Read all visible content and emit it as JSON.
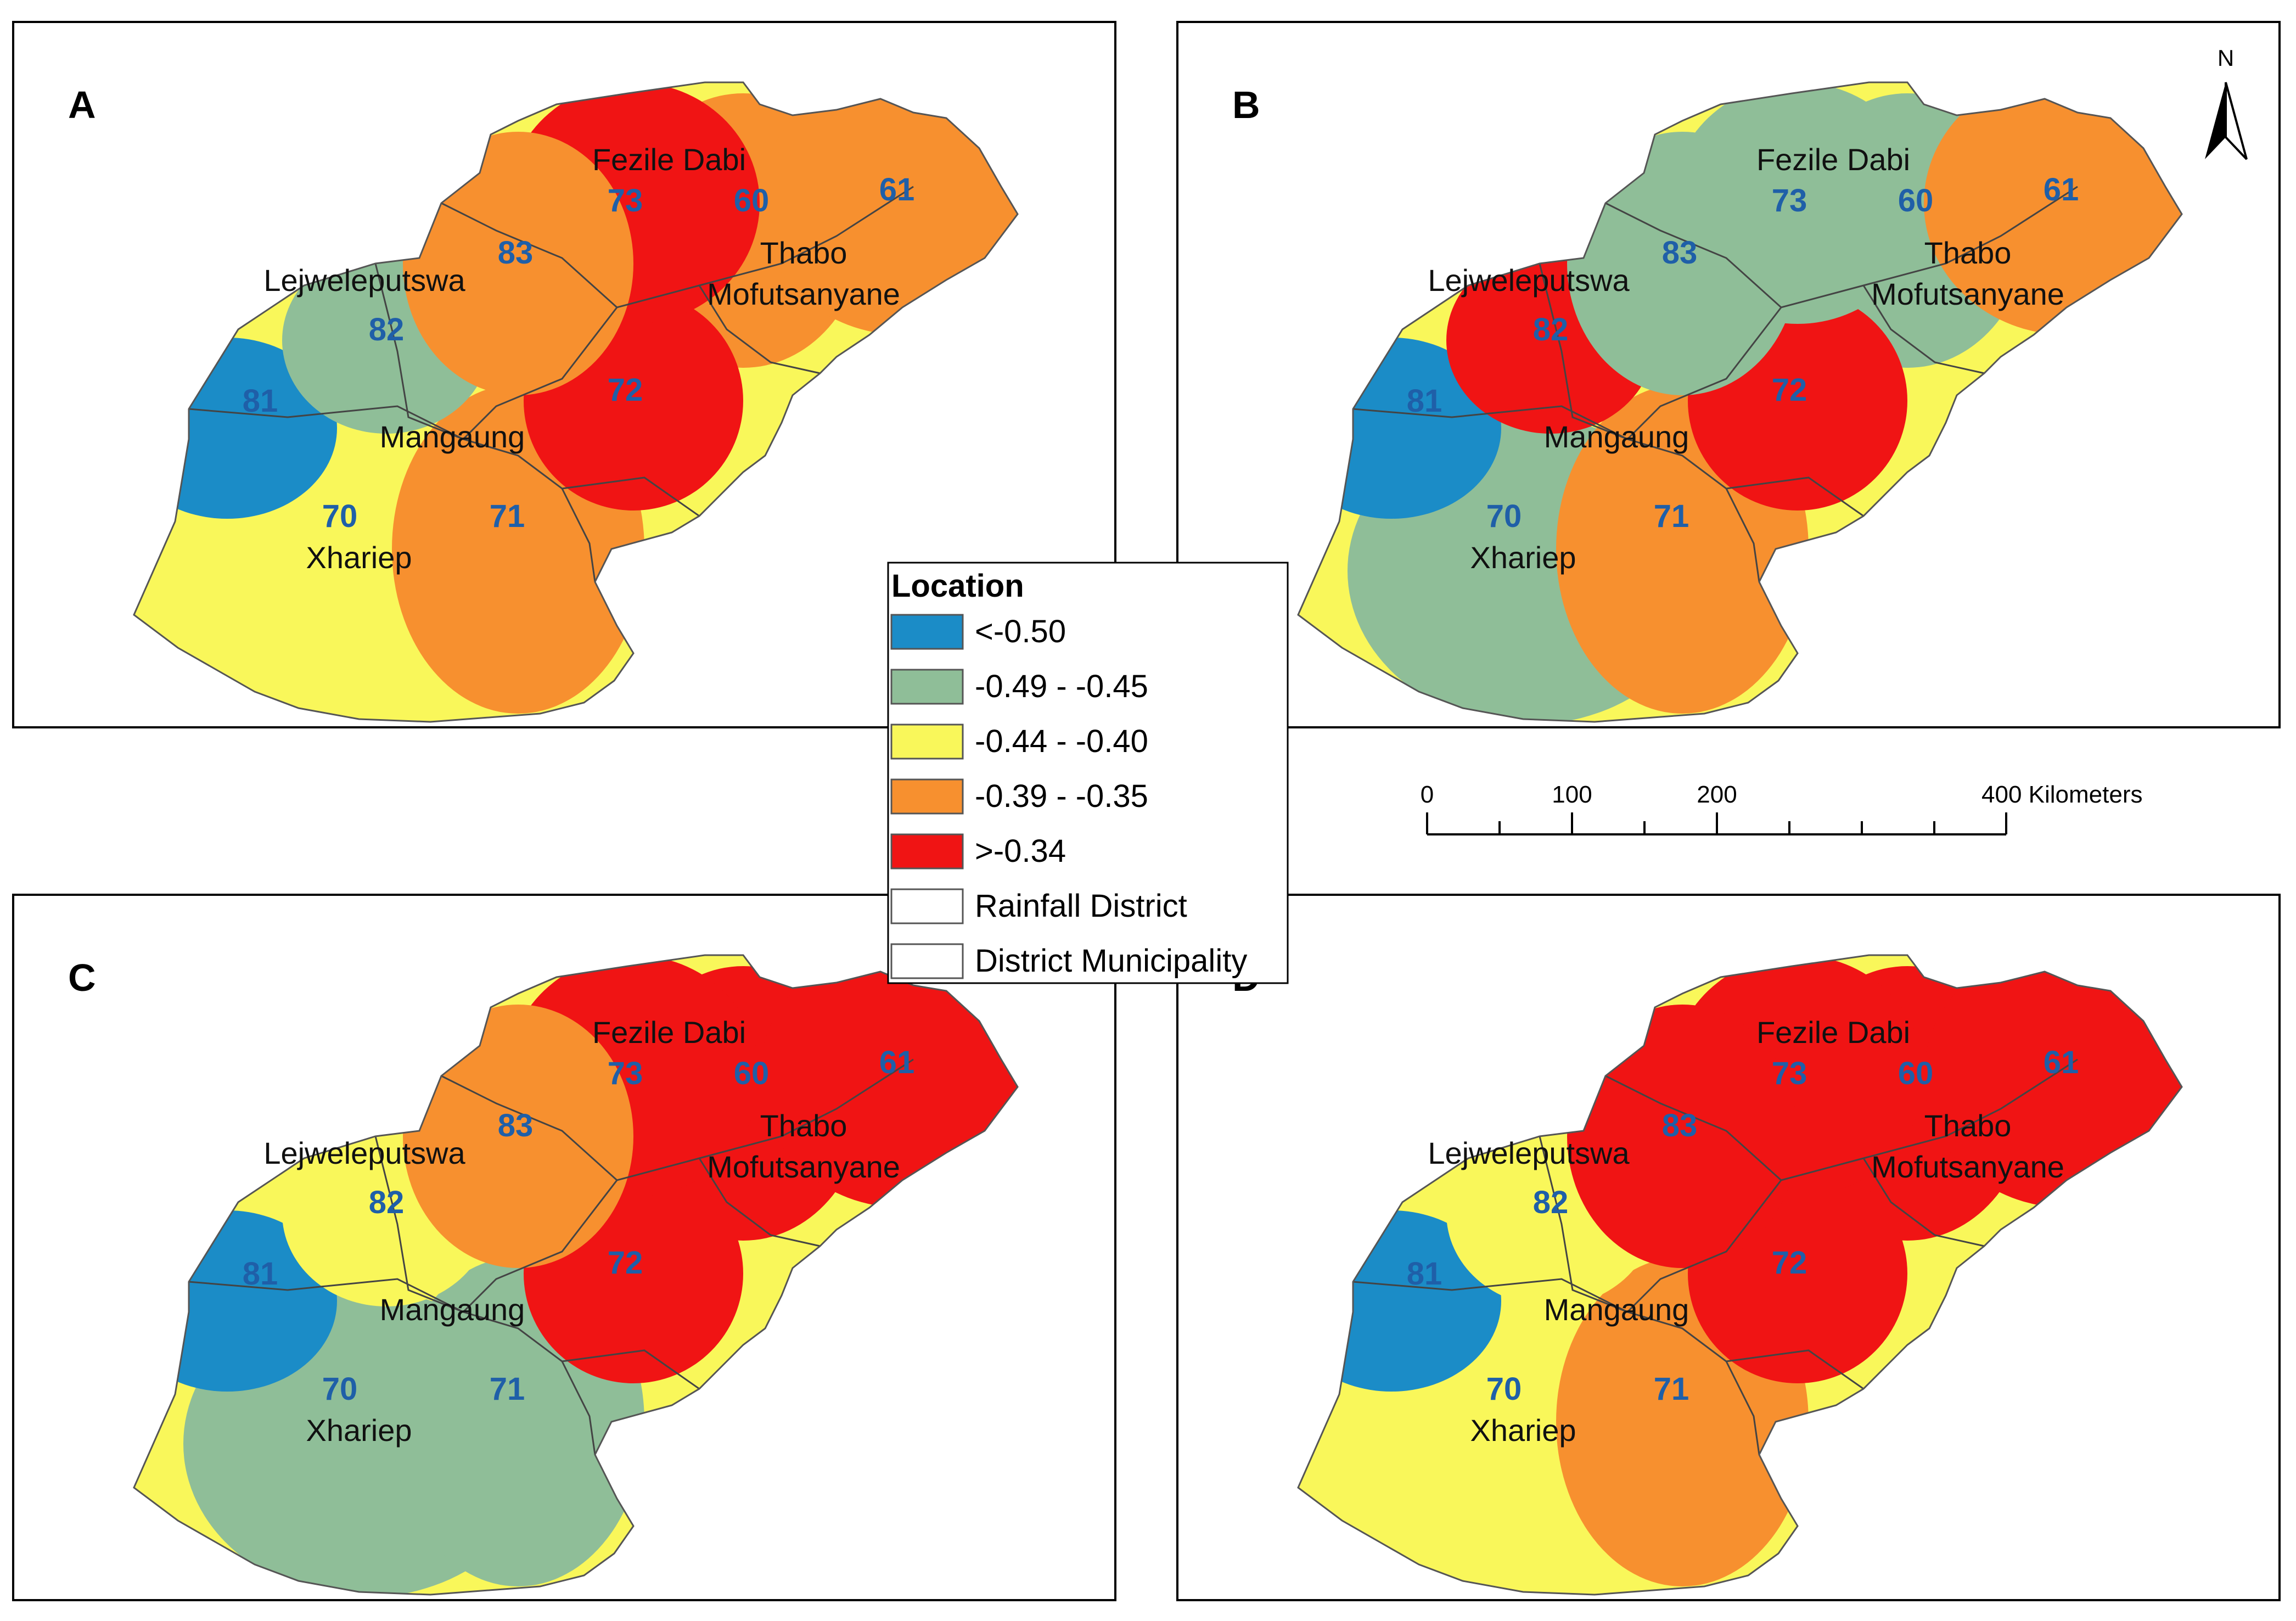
{
  "colors": {
    "class1": "#1b8cc7",
    "class2": "#8fbe98",
    "class3": "#f9f75a",
    "class4": "#f7902f",
    "class5": "#f01414"
  },
  "panels": [
    {
      "letter": "A",
      "classes": {
        "81": "class1",
        "82": "class2",
        "70": "class3",
        "83": "class4",
        "71": "class4",
        "73": "class5",
        "72": "class5",
        "60": "class4",
        "61": "class4"
      }
    },
    {
      "letter": "B",
      "classes": {
        "81": "class1",
        "70": "class2",
        "73": "class2",
        "83": "class2",
        "60": "class2",
        "82": "class5",
        "72": "class5",
        "71": "class4",
        "61": "class4"
      }
    },
    {
      "letter": "C",
      "classes": {
        "81": "class1",
        "70": "class2",
        "71": "class2",
        "82": "class3",
        "83": "class4",
        "73": "class5",
        "60": "class5",
        "61": "class5",
        "72": "class5"
      }
    },
    {
      "letter": "D",
      "classes": {
        "81": "class1",
        "82": "class3",
        "70": "class3",
        "71": "class4",
        "83": "class5",
        "73": "class5",
        "60": "class5",
        "61": "class5",
        "72": "class5"
      }
    }
  ],
  "districts": {
    "fezile": "Fezile Dabi",
    "lejwe": "Lejweleputswa",
    "thabo1": "Thabo",
    "thabo2": "Mofutsanyane",
    "mangaung": "Mangaung",
    "xhariep": "Xhariep"
  },
  "station_ids": [
    "73",
    "60",
    "61",
    "83",
    "82",
    "81",
    "72",
    "70",
    "71"
  ],
  "legend": {
    "title": "Location",
    "items": [
      {
        "label": "<-0.50",
        "color_key": "class1"
      },
      {
        "label": "-0.49 - -0.45",
        "color_key": "class2"
      },
      {
        "label": "-0.44 - -0.40",
        "color_key": "class3"
      },
      {
        "label": "-0.39 - -0.35",
        "color_key": "class4"
      },
      {
        "label": ">-0.34",
        "color_key": "class5"
      },
      {
        "label": "Rainfall District",
        "color_key": "none"
      },
      {
        "label": "District Municipality",
        "color_key": "none"
      }
    ]
  },
  "north_label": "N",
  "scale_bar": {
    "ticks": [
      "0",
      "100",
      "200",
      "400 Kilometers"
    ]
  }
}
